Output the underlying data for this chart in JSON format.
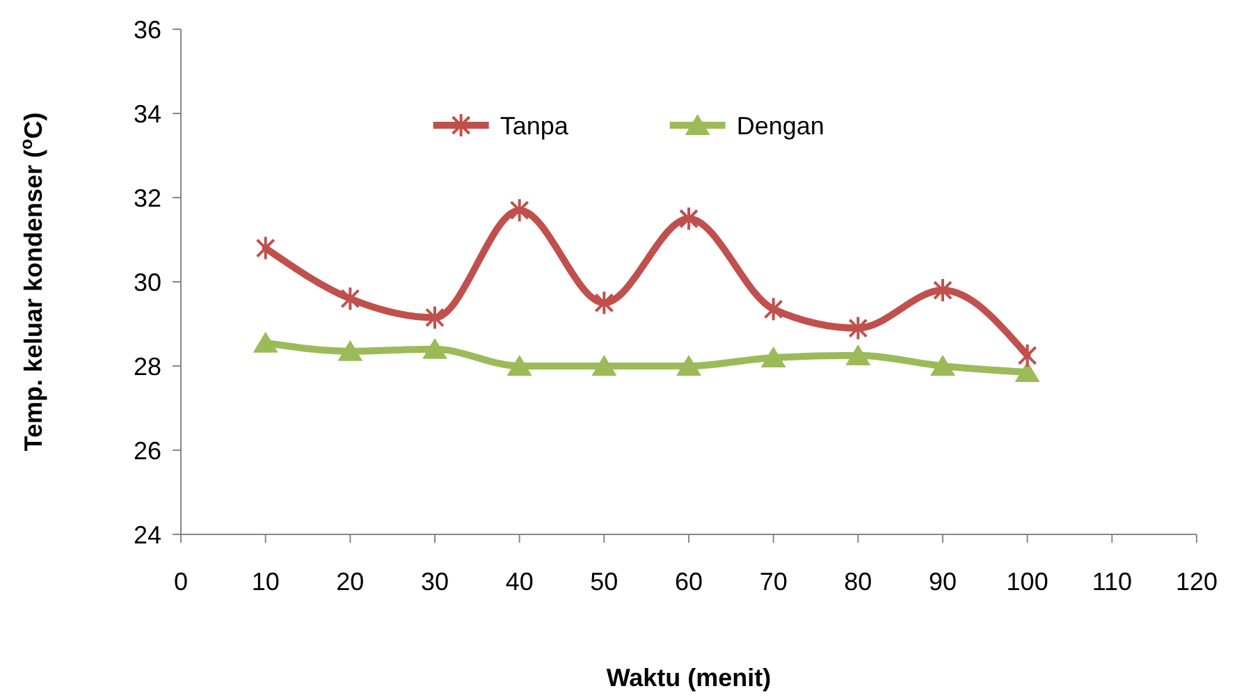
{
  "chart_data": {
    "type": "line",
    "xlabel": "Waktu (menit)",
    "ylabel": "Temp. keluar kondenser ($^{o}$C)",
    "x": [
      10,
      20,
      30,
      40,
      50,
      60,
      70,
      80,
      90,
      100
    ],
    "series": [
      {
        "name": "Tanpa",
        "color": "#c0504d",
        "marker": "cross",
        "values": [
          30.8,
          29.6,
          29.15,
          31.7,
          29.5,
          31.5,
          29.35,
          28.9,
          29.8,
          28.25
        ]
      },
      {
        "name": "Dengan",
        "color": "#9bbb59",
        "marker": "triangle",
        "values": [
          28.55,
          28.35,
          28.4,
          28.0,
          28.0,
          28.0,
          28.2,
          28.25,
          28.0,
          27.85
        ]
      }
    ],
    "xlim": [
      0,
      120
    ],
    "xticks": [
      0,
      10,
      20,
      30,
      40,
      50,
      60,
      70,
      80,
      90,
      100,
      110,
      120
    ],
    "ylim": [
      24,
      36
    ],
    "yticks": [
      24,
      26,
      28,
      30,
      32,
      34,
      36
    ],
    "grid": false,
    "legend": "top"
  }
}
